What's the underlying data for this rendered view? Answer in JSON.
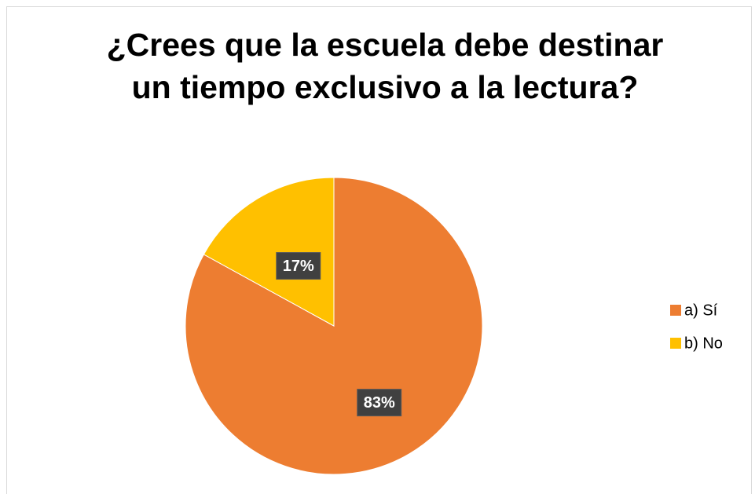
{
  "chart_data": {
    "type": "pie",
    "title": "¿Crees que la escuela debe destinar un tiempo exclusivo a la lectura?",
    "categories": [
      "a) Sí",
      "b) No"
    ],
    "values": [
      83,
      17
    ],
    "value_labels": [
      "83%",
      "17%"
    ],
    "colors": [
      "#ed7d31",
      "#ffc000"
    ],
    "legend": "right"
  }
}
